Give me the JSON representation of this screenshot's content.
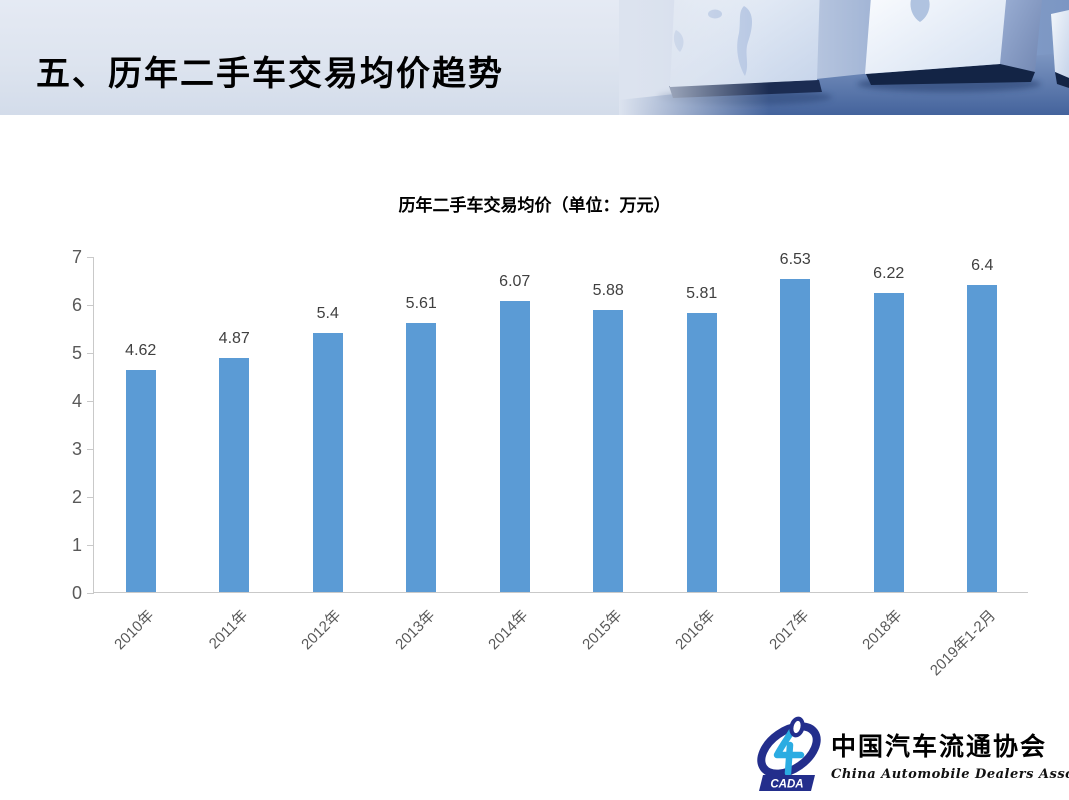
{
  "page": {
    "title": "五、历年二手车交易均价趋势"
  },
  "chart_data": {
    "type": "bar",
    "title": "历年二手车交易均价（单位：万元）",
    "categories": [
      "2010年",
      "2011年",
      "2012年",
      "2013年",
      "2014年",
      "2015年",
      "2016年",
      "2017年",
      "2018年",
      "2019年1-2月"
    ],
    "values": [
      4.62,
      4.87,
      5.4,
      5.61,
      6.07,
      5.88,
      5.81,
      6.53,
      6.22,
      6.4
    ],
    "data_labels": [
      "4.62",
      "4.87",
      "5.4",
      "5.61",
      "6.07",
      "5.88",
      "5.81",
      "6.53",
      "6.22",
      "6.4"
    ],
    "y_ticks": [
      "0",
      "1",
      "2",
      "3",
      "4",
      "5",
      "6",
      "7"
    ],
    "ylim": [
      0,
      7
    ],
    "grid": false,
    "legend": "none",
    "bar_color": "#5B9BD5",
    "axis_color": "#C9C9C9",
    "tick_label_color": "#595959",
    "data_label_color": "#404040"
  },
  "footer": {
    "logo": {
      "badge_text": "CADA",
      "cn_name": "中国汽车流通协会",
      "en_name": "China Automobile Dealers Association"
    }
  }
}
